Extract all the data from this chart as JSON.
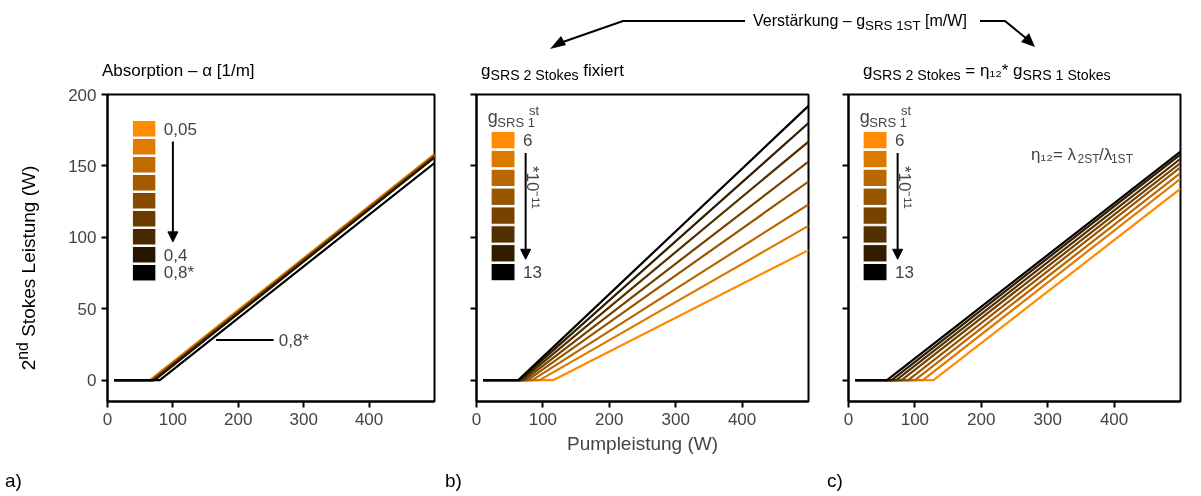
{
  "chart_data": [
    {
      "type": "line",
      "title": "Absorption – α [1/m]",
      "ylabel": "2$^{nd}$ Stokes Leistung (W)",
      "xlim": [
        0,
        500
      ],
      "ylim": [
        -15,
        200
      ],
      "xticks": [
        0,
        100,
        200,
        300,
        400
      ],
      "yticks": [
        0,
        50,
        100,
        150,
        200
      ],
      "grid": false,
      "legend": "top left",
      "line_style": "solid",
      "annotations": [
        "a)",
        "0,8*"
      ],
      "series": [
        {
          "name": "0,05",
          "color": "#ff8c00",
          "x": [
            10,
            65,
            500
          ],
          "values": [
            0,
            0,
            158
          ]
        },
        {
          "color": "#e07c00",
          "x": [
            10,
            66,
            500
          ],
          "values": [
            0,
            0,
            158
          ]
        },
        {
          "color": "#c26c00",
          "x": [
            10,
            67,
            500
          ],
          "values": [
            0,
            0,
            157
          ]
        },
        {
          "color": "#a35b00",
          "x": [
            10,
            68,
            500
          ],
          "values": [
            0,
            0,
            157
          ]
        },
        {
          "color": "#864b00",
          "x": [
            10,
            69,
            500
          ],
          "values": [
            0,
            0,
            157
          ]
        },
        {
          "color": "#693b00",
          "x": [
            10,
            70,
            500
          ],
          "values": [
            0,
            0,
            156
          ]
        },
        {
          "color": "#4a2900",
          "x": [
            10,
            71,
            500
          ],
          "values": [
            0,
            0,
            156
          ]
        },
        {
          "name": "0,4",
          "color": "#261600",
          "x": [
            10,
            72,
            500
          ],
          "values": [
            0,
            0,
            156
          ]
        },
        {
          "name": "0,8*",
          "color": "#000000",
          "x": [
            10,
            80,
            500
          ],
          "values": [
            0,
            0,
            152
          ]
        }
      ]
    },
    {
      "type": "line",
      "title": "g$_{SRS 2 Stokes}$ fixiert",
      "xlabel": "Pumpleistung (W)",
      "legend_title": "g$_{SRS 1}$$^{st}$",
      "xlim": [
        0,
        500
      ],
      "ylim": [
        -15,
        200
      ],
      "xticks": [
        0,
        100,
        200,
        300,
        400
      ],
      "yticks": [
        0,
        50,
        100,
        150,
        200
      ],
      "tick_labels": "x",
      "grid": false,
      "legend": "top left",
      "line_style": "solid",
      "annotations": [
        "b)",
        "Verstärkung – g$_{SRS 1ST}$ [m/W]",
        "*10⁻¹¹"
      ],
      "series": [
        {
          "name": "6",
          "color": "#ff8c00",
          "x": [
            10,
            116,
            500
          ],
          "values": [
            0,
            0,
            91
          ]
        },
        {
          "color": "#dc7a00",
          "x": [
            10,
            95,
            500
          ],
          "values": [
            0,
            0,
            108
          ]
        },
        {
          "color": "#b96700",
          "x": [
            10,
            84,
            500
          ],
          "values": [
            0,
            0,
            123
          ]
        },
        {
          "color": "#975500",
          "x": [
            10,
            77,
            500
          ],
          "values": [
            0,
            0,
            139
          ]
        },
        {
          "color": "#764200",
          "x": [
            10,
            72,
            500
          ],
          "values": [
            0,
            0,
            153
          ]
        },
        {
          "color": "#533000",
          "x": [
            10,
            68,
            500
          ],
          "values": [
            0,
            0,
            167
          ]
        },
        {
          "color": "#321c00",
          "x": [
            10,
            65,
            500
          ],
          "values": [
            0,
            0,
            180
          ]
        },
        {
          "name": "13",
          "color": "#000000",
          "x": [
            10,
            63,
            500
          ],
          "values": [
            0,
            0,
            192
          ]
        }
      ]
    },
    {
      "type": "line",
      "title": "g$_{SRS 2 Stokes}$ = η₁₂* g$_{SRS 1 Stokes}$",
      "legend_title": "g$_{SRS 1}$$^{st}$",
      "xlim": [
        0,
        500
      ],
      "ylim": [
        -15,
        200
      ],
      "xticks": [
        0,
        100,
        200,
        300,
        400
      ],
      "yticks": [
        0,
        50,
        100,
        150,
        200
      ],
      "tick_labels": "x",
      "grid": false,
      "legend": "top left",
      "line_style": "solid",
      "annotations": [
        "c)",
        "*10⁻¹¹",
        "η₁₂= λ$_{2ST}$/λ$_{1ST}$"
      ],
      "series": [
        {
          "name": "6",
          "color": "#ff8c00",
          "x": [
            10,
            128,
            500
          ],
          "values": [
            0,
            0,
            134
          ]
        },
        {
          "color": "#dc7a00",
          "x": [
            10,
            112,
            500
          ],
          "values": [
            0,
            0,
            141
          ]
        },
        {
          "color": "#b96700",
          "x": [
            10,
            100,
            500
          ],
          "values": [
            0,
            0,
            145
          ]
        },
        {
          "color": "#975500",
          "x": [
            10,
            90,
            500
          ],
          "values": [
            0,
            0,
            149
          ]
        },
        {
          "color": "#764200",
          "x": [
            10,
            80,
            500
          ],
          "values": [
            0,
            0,
            152
          ]
        },
        {
          "color": "#533000",
          "x": [
            10,
            72,
            500
          ],
          "values": [
            0,
            0,
            155
          ]
        },
        {
          "color": "#321c00",
          "x": [
            10,
            65,
            500
          ],
          "values": [
            0,
            0,
            158
          ]
        },
        {
          "name": "13",
          "color": "#000000",
          "x": [
            10,
            58,
            500
          ],
          "values": [
            0,
            0,
            160
          ]
        }
      ]
    }
  ]
}
